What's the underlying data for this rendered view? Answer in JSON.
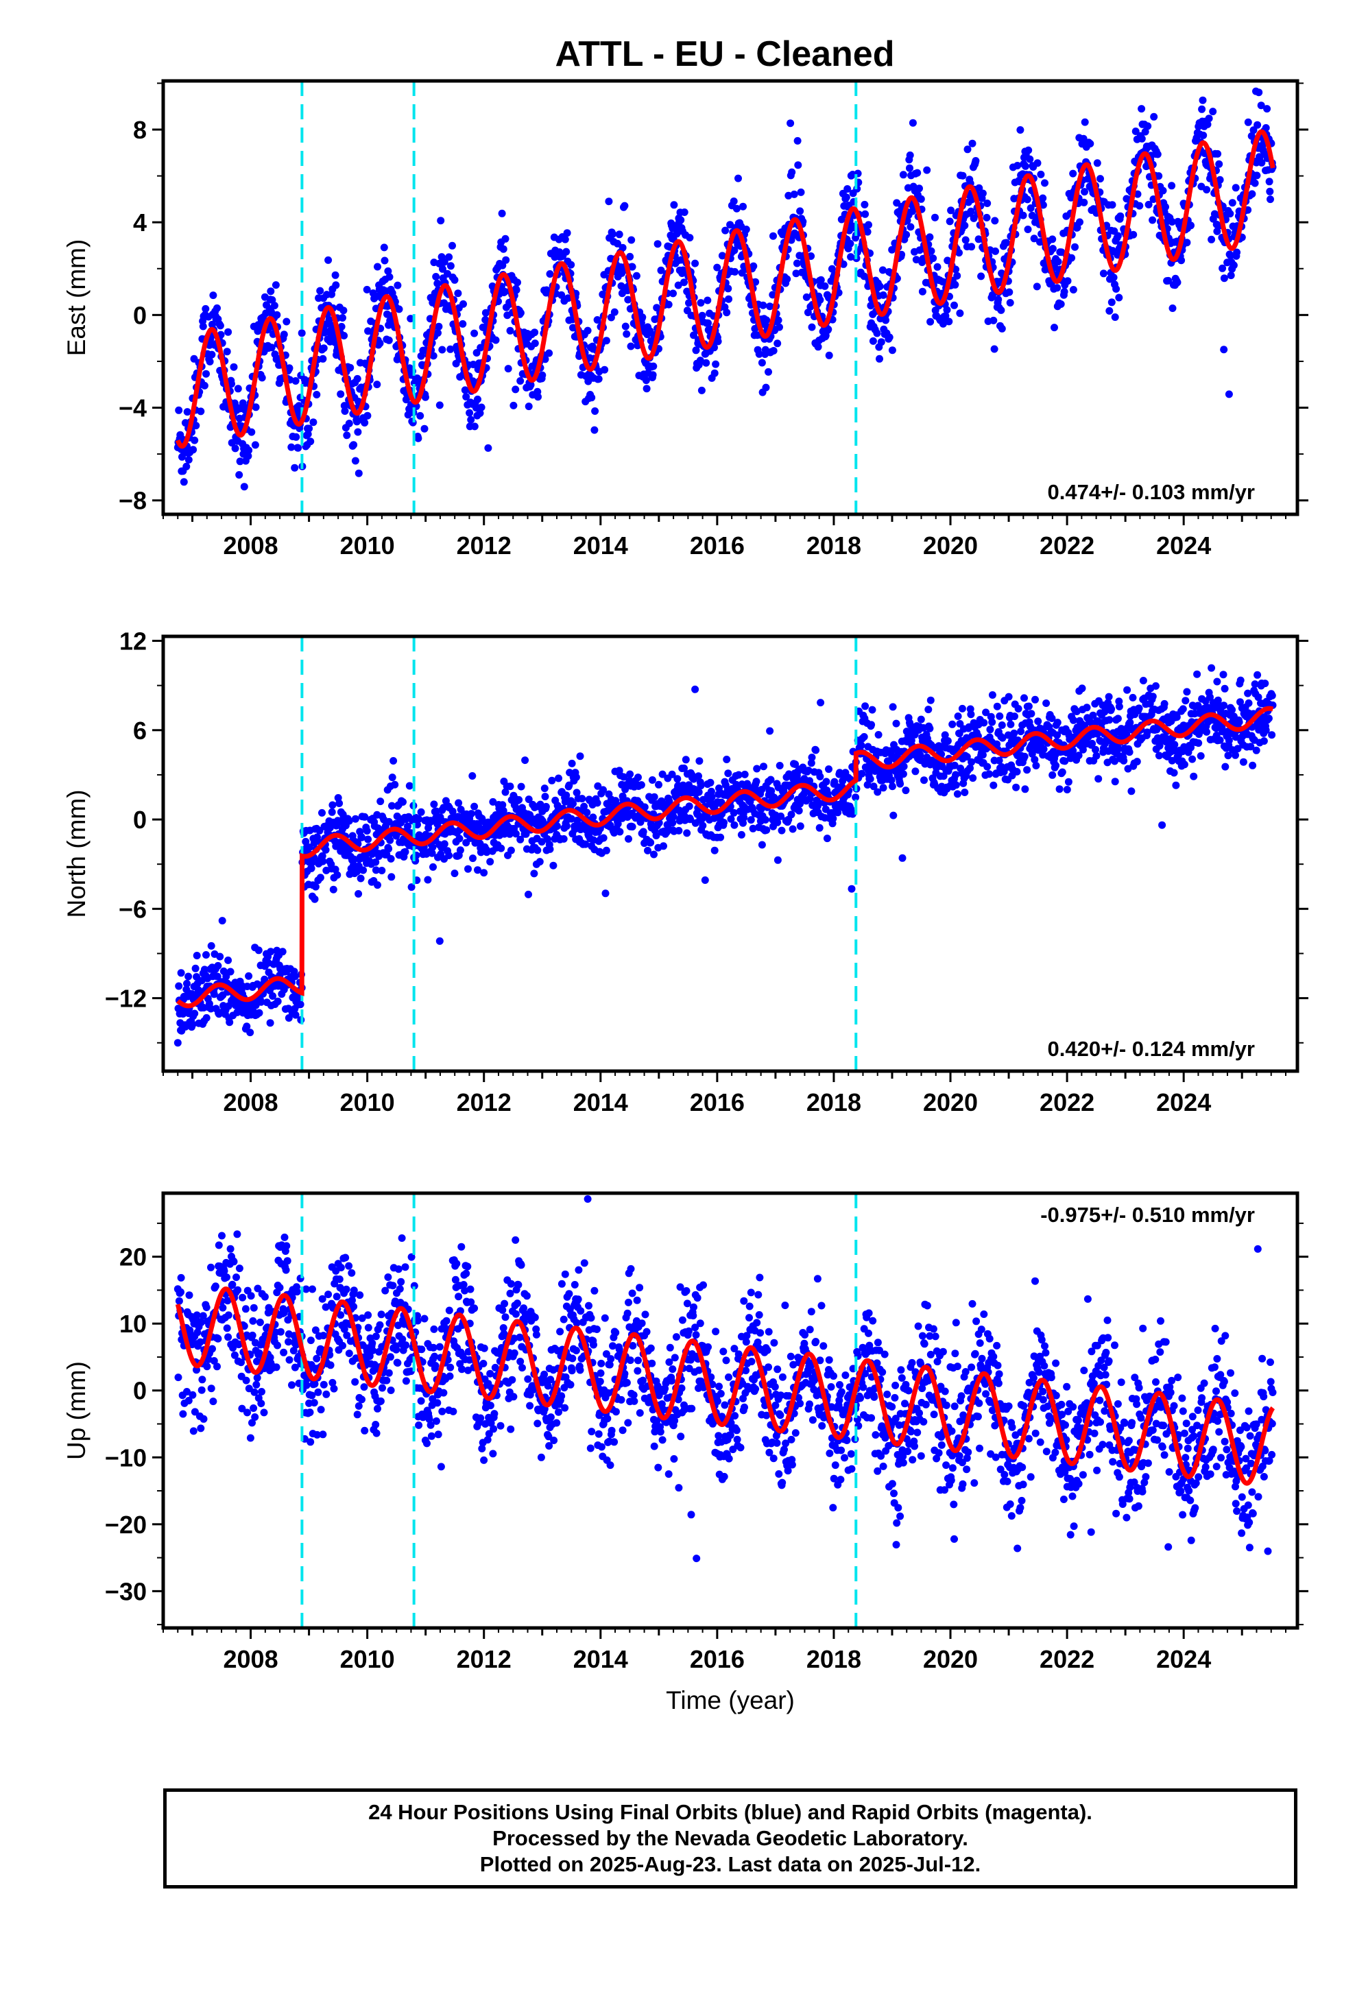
{
  "title": "ATTL  - EU - Cleaned",
  "footer": {
    "line1": "24 Hour Positions Using Final Orbits (blue) and Rapid Orbits (magenta).",
    "line2": "Processed by the Nevada Geodetic Laboratory.",
    "line3": "Plotted on 2025-Aug-23. Last data on 2025-Jul-12."
  },
  "chart_data": [
    {
      "type": "scatter",
      "id": "east",
      "ylabel": "East (mm)",
      "xlabel": "",
      "xlim": [
        2006.5,
        2025.95
      ],
      "ylim": [
        -8.6,
        10.1
      ],
      "xticks": [
        2008,
        2010,
        2012,
        2014,
        2016,
        2018,
        2020,
        2022,
        2024
      ],
      "yticks": [
        -8,
        -4,
        0,
        4,
        8
      ],
      "yticklabels": [
        "−8",
        "−4",
        "0",
        "4",
        "8"
      ],
      "rate_text": "0.474+/- 0.103 mm/yr",
      "rate_position": "bottom-right",
      "point_color": "#0000ff",
      "fit_color": "#ff0000",
      "break_color": "#00e5ee",
      "breaks": [
        2008.88,
        2010.8,
        2018.38
      ],
      "data_range": [
        2006.75,
        2025.53
      ],
      "model": {
        "offset": -3.3,
        "trend": 0.474,
        "t0": 2006.75,
        "amplitude": 2.4,
        "phase": 2007.33,
        "steps": []
      },
      "noise_sd": 1.0
    },
    {
      "type": "scatter",
      "id": "north",
      "ylabel": "North (mm)",
      "xlabel": "",
      "xlim": [
        2006.5,
        2025.95
      ],
      "ylim": [
        -16.9,
        12.3
      ],
      "xticks": [
        2008,
        2010,
        2012,
        2014,
        2016,
        2018,
        2020,
        2022,
        2024
      ],
      "yticks": [
        -12,
        -6,
        0,
        6,
        12
      ],
      "yticklabels": [
        "−12",
        "−6",
        "0",
        "6",
        "12"
      ],
      "rate_text": "0.420+/- 0.124 mm/yr",
      "rate_position": "bottom-right",
      "point_color": "#0000ff",
      "fit_color": "#ff0000",
      "break_color": "#00e5ee",
      "breaks": [
        2008.88,
        2010.8,
        2018.38
      ],
      "data_range": [
        2006.75,
        2025.53
      ],
      "model": {
        "offset": -12.0,
        "trend": 0.42,
        "t0": 2006.75,
        "amplitude": 0.6,
        "phase": 2007.45,
        "steps": [
          {
            "t": 2008.88,
            "size": 9.2
          },
          {
            "t": 2018.38,
            "size": 1.8
          }
        ]
      },
      "noise_sd": 1.2
    },
    {
      "type": "scatter",
      "id": "up",
      "ylabel": "Up (mm)",
      "xlabel": "Time (year)",
      "xlim": [
        2006.5,
        2025.95
      ],
      "ylim": [
        -35.5,
        29.5
      ],
      "xticks": [
        2008,
        2010,
        2012,
        2014,
        2016,
        2018,
        2020,
        2022,
        2024
      ],
      "yticks": [
        -30,
        -20,
        -10,
        0,
        10,
        20
      ],
      "yticklabels": [
        "−30",
        "−20",
        "−10",
        "0",
        "10",
        "20"
      ],
      "rate_text": "-0.975+/- 0.510 mm/yr",
      "rate_position": "top-right",
      "point_color": "#0000ff",
      "fit_color": "#ff0000",
      "break_color": "#00e5ee",
      "breaks": [
        2008.88,
        2010.8,
        2018.38
      ],
      "data_range": [
        2006.75,
        2025.53
      ],
      "model": {
        "offset": 10.0,
        "trend": -0.975,
        "t0": 2006.75,
        "amplitude": 6.0,
        "phase": 2007.58,
        "steps": []
      },
      "noise_sd": 5.0
    }
  ]
}
